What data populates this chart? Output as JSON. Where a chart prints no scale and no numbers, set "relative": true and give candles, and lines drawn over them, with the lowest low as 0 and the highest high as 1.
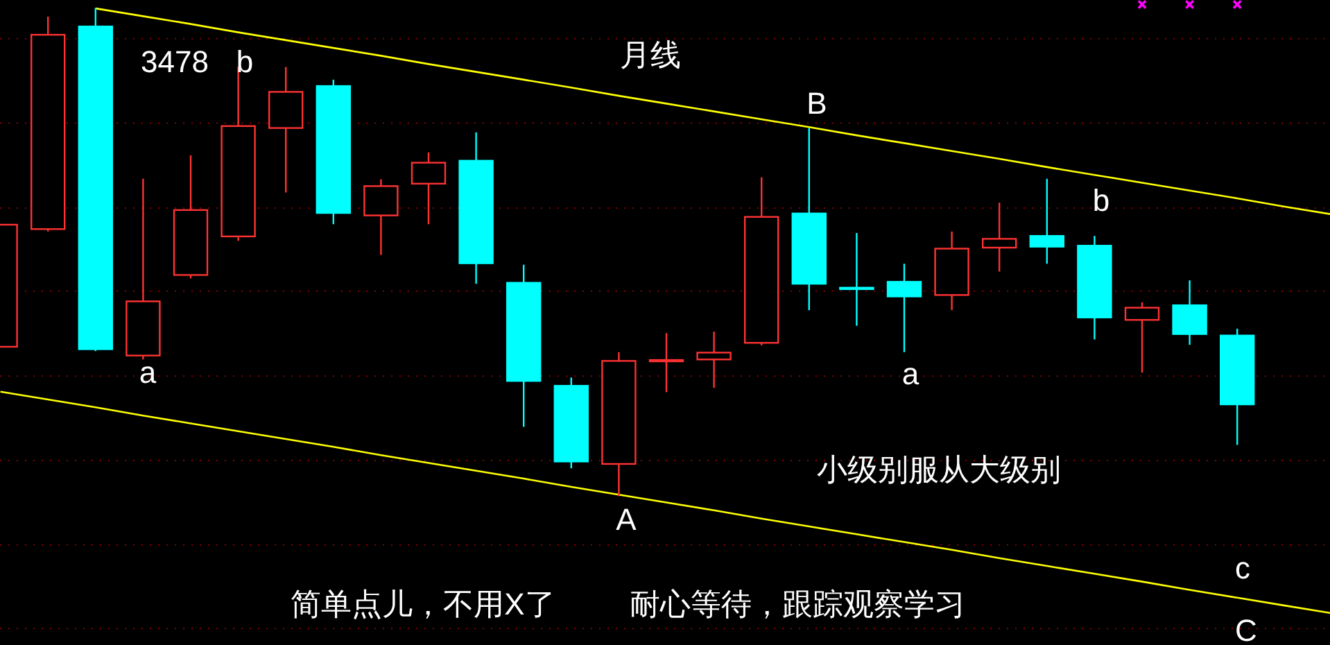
{
  "chart_data": {
    "type": "candlestick",
    "title": "月线",
    "relative": true,
    "categories": [
      null,
      null,
      null,
      null,
      null,
      null,
      null,
      null,
      null,
      null,
      null,
      null,
      null,
      null,
      null,
      null,
      null,
      null,
      null,
      null,
      null,
      null,
      null,
      null,
      null,
      null,
      null,
      null,
      null
    ],
    "series": [
      {
        "ohlc": [
          [
            0.306,
            0.556,
            0.306,
            0.556
          ],
          [
            0.547,
            0.982,
            0.542,
            0.945
          ],
          [
            0.962,
            1.0,
            0.297,
            0.301
          ],
          [
            0.288,
            0.65,
            0.28,
            0.399
          ],
          [
            0.453,
            0.698,
            0.446,
            0.586
          ],
          [
            0.532,
            0.88,
            0.523,
            0.758
          ],
          [
            0.754,
            0.879,
            0.622,
            0.828
          ],
          [
            0.84,
            0.853,
            0.557,
            0.58
          ],
          [
            0.575,
            0.649,
            0.494,
            0.635
          ],
          [
            0.64,
            0.704,
            0.557,
            0.683
          ],
          [
            0.687,
            0.745,
            0.435,
            0.477
          ],
          [
            0.437,
            0.474,
            0.142,
            0.236
          ],
          [
            0.226,
            0.243,
            0.057,
            0.071
          ],
          [
            0.066,
            0.295,
            0,
            0.277
          ],
          [
            0.277,
            0.334,
            0.213,
            0.278
          ],
          [
            0.28,
            0.337,
            0.222,
            0.294
          ],
          [
            0.314,
            0.653,
            0.309,
            0.572
          ],
          [
            0.579,
            0.754,
            0.381,
            0.435
          ],
          [
            0.427,
            0.539,
            0.349,
            0.424
          ],
          [
            0.439,
            0.476,
            0.295,
            0.409
          ],
          [
            0.412,
            0.542,
            0.381,
            0.507
          ],
          [
            0.509,
            0.601,
            0.46,
            0.527
          ],
          [
            0.533,
            0.65,
            0.476,
            0.511
          ],
          [
            0.513,
            0.533,
            0.321,
            0.366
          ],
          [
            0.361,
            0.397,
            0.253,
            0.386
          ],
          [
            0.391,
            0.442,
            0.31,
            0.332
          ],
          [
            0.329,
            0.343,
            0.105,
            0.188
          ],
          null,
          null
        ],
        "colors": [
          "#ff3232",
          "#ff3232",
          "#00ffff",
          "#ff3232",
          "#ff3232",
          "#ff3232",
          "#ff3232",
          "#00ffff",
          "#ff3232",
          "#ff3232",
          "#00ffff",
          "#00ffff",
          "#00ffff",
          "#ff3232",
          "#ff3232",
          "#ff3232",
          "#ff3232",
          "#00ffff",
          "#00ffff",
          "#00ffff",
          "#ff3232",
          "#ff3232",
          "#00ffff",
          "#00ffff",
          "#ff3232",
          "#00ffff",
          "#00ffff",
          null,
          null
        ]
      },
      {
        "type": "line",
        "color": "#ffff00",
        "values": [
          null,
          null,
          0.999,
          0.983,
          0.967,
          0.95,
          0.934,
          0.918,
          0.902,
          0.885,
          0.869,
          0.853,
          0.837,
          0.82,
          0.804,
          0.788,
          0.772,
          0.756,
          0.739,
          0.723,
          0.707,
          0.691,
          0.674,
          0.658,
          0.642,
          0.626,
          0.61,
          0.593,
          0.577
        ]
      },
      {
        "type": "line",
        "color": "#ffff00",
        "values": [
          0.214,
          0.198,
          0.182,
          0.165,
          0.149,
          0.133,
          0.117,
          0.101,
          0.084,
          0.068,
          0.052,
          0.036,
          0.019,
          0.003,
          -0.013,
          -0.029,
          -0.046,
          -0.062,
          -0.078,
          -0.094,
          -0.11,
          -0.127,
          -0.143,
          -0.159,
          -0.175,
          -0.192,
          -0.208,
          -0.224,
          -0.24
        ]
      },
      {
        "type": "scatter",
        "color": "#ff00ff",
        "marker": "cross",
        "values": [
          null,
          null,
          null,
          null,
          null,
          null,
          null,
          null,
          null,
          null,
          null,
          null,
          null,
          null,
          null,
          null,
          null,
          null,
          null,
          null,
          null,
          null,
          null,
          null,
          1.007,
          1.007,
          1.007,
          null,
          null
        ]
      }
    ],
    "ref_lines": [
      {
        "axis": "y",
        "value": 0.937,
        "color": "#8a0000",
        "line_style": "dotted"
      },
      {
        "axis": "y",
        "value": 0.764,
        "color": "#8a0000",
        "line_style": "dotted"
      },
      {
        "axis": "y",
        "value": 0.59,
        "color": "#8a0000",
        "line_style": "dotted"
      },
      {
        "axis": "y",
        "value": 0.42,
        "color": "#8a0000",
        "line_style": "dotted"
      },
      {
        "axis": "y",
        "value": 0.246,
        "color": "#8a0000",
        "line_style": "dotted"
      },
      {
        "axis": "y",
        "value": 0.073,
        "color": "#8a0000",
        "line_style": "dotted"
      },
      {
        "axis": "y",
        "value": -0.1,
        "color": "#8a0000",
        "line_style": "dotted"
      },
      {
        "axis": "y",
        "value": -0.271,
        "color": "#8a0000",
        "line_style": "dotted"
      }
    ],
    "annotations": [
      "3478",
      "b",
      "a",
      "A",
      "B",
      "a",
      "b",
      "小级别服从大级别",
      "c",
      "C",
      "简单点儿，不用X了",
      "耐心等待，跟踪观察学习"
    ]
  }
}
